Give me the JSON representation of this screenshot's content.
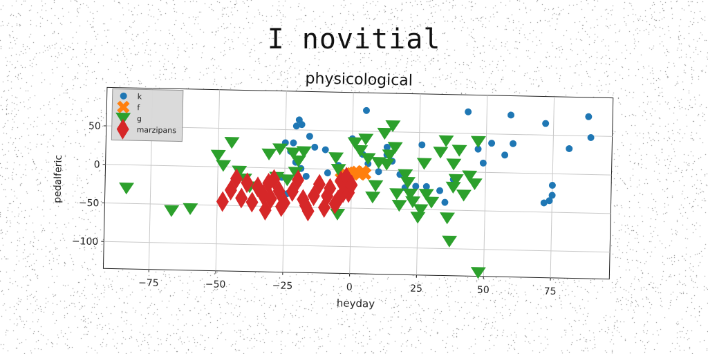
{
  "page_title": "I novitial",
  "chart_data": {
    "type": "scatter",
    "title": "physicological",
    "xlabel": "heyday",
    "ylabel": "pedalferic",
    "xlim": [
      -92,
      97
    ],
    "ylim": [
      -135,
      100
    ],
    "x_ticks": [
      -75,
      -50,
      -25,
      0,
      25,
      50,
      75
    ],
    "y_ticks": [
      -100,
      -50,
      0,
      50
    ],
    "grid": true,
    "legend_position": "upper-left",
    "series": [
      {
        "name": "k",
        "marker": "circle",
        "color": "#1f77b4",
        "points": [
          [
            -21,
            55
          ],
          [
            -20,
            63
          ],
          [
            -19,
            57
          ],
          [
            -16,
            42
          ],
          [
            -14,
            28
          ],
          [
            -10,
            25
          ],
          [
            -25,
            33
          ],
          [
            -22,
            33
          ],
          [
            -23,
            22
          ],
          [
            -21,
            8
          ],
          [
            -19,
            0
          ],
          [
            -17,
            -10
          ],
          [
            -20,
            -20
          ],
          [
            -26,
            -12
          ],
          [
            -27,
            -25
          ],
          [
            -24,
            -33
          ],
          [
            -9,
            -5
          ],
          [
            -5,
            5
          ],
          [
            0,
            40
          ],
          [
            4,
            20
          ],
          [
            6,
            8
          ],
          [
            10,
            -2
          ],
          [
            13,
            20
          ],
          [
            5,
            77
          ],
          [
            13,
            30
          ],
          [
            15,
            12
          ],
          [
            18,
            -5
          ],
          [
            20,
            -22
          ],
          [
            24,
            -20
          ],
          [
            26,
            34
          ],
          [
            28,
            -20
          ],
          [
            33,
            -25
          ],
          [
            35,
            -40
          ],
          [
            38,
            -10
          ],
          [
            43,
            78
          ],
          [
            47,
            30
          ],
          [
            49,
            12
          ],
          [
            52,
            38
          ],
          [
            59,
            75
          ],
          [
            60,
            38
          ],
          [
            57,
            23
          ],
          [
            72,
            65
          ],
          [
            75,
            -15
          ],
          [
            75,
            -28
          ],
          [
            74,
            -35
          ],
          [
            72,
            -38
          ],
          [
            81,
            33
          ],
          [
            88,
            75
          ],
          [
            89,
            48
          ]
        ]
      },
      {
        "name": "f",
        "marker": "x",
        "color": "#ff7f0e",
        "points": [
          [
            -4,
            -12
          ],
          [
            -2,
            -7
          ],
          [
            0,
            -5
          ],
          [
            1,
            -4
          ],
          [
            2,
            -3
          ],
          [
            3,
            -6
          ],
          [
            4,
            -2
          ],
          [
            5,
            -5
          ]
        ]
      },
      {
        "name": "g",
        "marker": "triangle-down",
        "color": "#2ca02c",
        "points": [
          [
            -84,
            -30
          ],
          [
            -67,
            -58
          ],
          [
            -60,
            -55
          ],
          [
            -50,
            15
          ],
          [
            -48,
            2
          ],
          [
            -45,
            32
          ],
          [
            -42,
            -5
          ],
          [
            -40,
            -15
          ],
          [
            -38,
            -25
          ],
          [
            -31,
            18
          ],
          [
            -28,
            -12
          ],
          [
            -27,
            25
          ],
          [
            -24,
            -15
          ],
          [
            -22,
            20
          ],
          [
            -21,
            -5
          ],
          [
            -20,
            10
          ],
          [
            -18,
            22
          ],
          [
            -5,
            -58
          ],
          [
            -6,
            15
          ],
          [
            -5,
            0
          ],
          [
            1,
            35
          ],
          [
            3,
            25
          ],
          [
            5,
            40
          ],
          [
            6,
            15
          ],
          [
            8,
            -35
          ],
          [
            9,
            -20
          ],
          [
            10,
            10
          ],
          [
            12,
            48
          ],
          [
            13,
            8
          ],
          [
            14,
            20
          ],
          [
            15,
            58
          ],
          [
            16,
            30
          ],
          [
            17,
            -30
          ],
          [
            18,
            -45
          ],
          [
            20,
            -5
          ],
          [
            21,
            -15
          ],
          [
            22,
            -30
          ],
          [
            23,
            -40
          ],
          [
            25,
            -60
          ],
          [
            26,
            -50
          ],
          [
            27,
            10
          ],
          [
            28,
            -30
          ],
          [
            30,
            -40
          ],
          [
            33,
            25
          ],
          [
            35,
            40
          ],
          [
            36,
            -60
          ],
          [
            37,
            -90
          ],
          [
            38,
            -20
          ],
          [
            38,
            10
          ],
          [
            39,
            -10
          ],
          [
            40,
            28
          ],
          [
            42,
            -30
          ],
          [
            44,
            -5
          ],
          [
            46,
            -15
          ],
          [
            47,
            40
          ],
          [
            48,
            -130
          ]
        ]
      },
      {
        "name": "marzipans",
        "marker": "diamond",
        "color": "#d62728",
        "points": [
          [
            -48,
            -45
          ],
          [
            -45,
            -30
          ],
          [
            -43,
            -15
          ],
          [
            -41,
            -40
          ],
          [
            -39,
            -20
          ],
          [
            -37,
            -45
          ],
          [
            -35,
            -25
          ],
          [
            -33,
            -35
          ],
          [
            -31,
            -20
          ],
          [
            -30,
            -40
          ],
          [
            -29,
            -15
          ],
          [
            -27,
            -30
          ],
          [
            -25,
            -45
          ],
          [
            -22,
            -30
          ],
          [
            -20,
            -15
          ],
          [
            -18,
            -40
          ],
          [
            -16,
            -55
          ],
          [
            -14,
            -35
          ],
          [
            -12,
            -20
          ],
          [
            -10,
            -50
          ],
          [
            -9,
            -35
          ],
          [
            -8,
            -25
          ],
          [
            -6,
            -45
          ],
          [
            -5,
            -40
          ],
          [
            -4,
            -15
          ],
          [
            -3,
            -30
          ],
          [
            -2,
            -10
          ],
          [
            -1,
            -30
          ],
          [
            0,
            -20
          ],
          [
            -32,
            -55
          ],
          [
            -17,
            -48
          ],
          [
            -26,
            -50
          ]
        ]
      }
    ]
  }
}
